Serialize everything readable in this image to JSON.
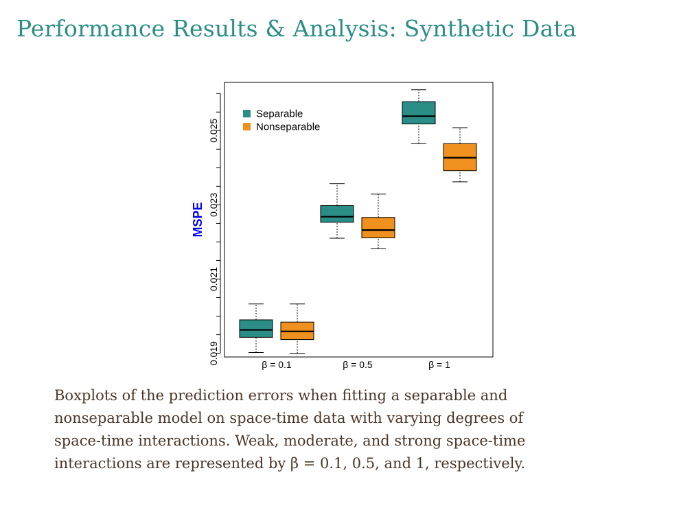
{
  "slide": {
    "title": "Performance Results & Analysis: Synthetic Data"
  },
  "caption": {
    "lines": [
      "Boxplots of the prediction errors when fitting a separable and",
      "nonseparable model on space-time data with varying degrees of",
      "space-time interactions. Weak, moderate, and strong space-time",
      "interactions are represented by β = 0.1, 0.5, and 1, respectively."
    ]
  },
  "colors": {
    "separable": "#2a8d86",
    "nonseparable": "#f0901e",
    "ylabel": "#0000ee",
    "title": "#2a8d86",
    "caption": "#4a3526"
  },
  "chart_data": {
    "type": "boxplot",
    "title": "",
    "xlabel": "",
    "ylabel": "MSPE",
    "ylim": [
      0.0189,
      0.0263
    ],
    "yticks": [
      "0.019",
      "0.021",
      "0.023",
      "0.025"
    ],
    "ytick_values": [
      0.019,
      0.021,
      0.023,
      0.025
    ],
    "categories": [
      "β = 0.1",
      "β = 0.5",
      "β = 1"
    ],
    "legend": {
      "position": "top-left",
      "entries": [
        "Separable",
        "Nonseparable"
      ]
    },
    "series": [
      {
        "name": "Separable",
        "color": "#2a8d86",
        "boxes": [
          {
            "min": 0.01902,
            "q1": 0.01943,
            "median": 0.01963,
            "q3": 0.0199,
            "max": 0.02033
          },
          {
            "min": 0.0221,
            "q1": 0.02253,
            "median": 0.02268,
            "q3": 0.02298,
            "max": 0.02357
          },
          {
            "min": 0.02465,
            "q1": 0.02518,
            "median": 0.02539,
            "q3": 0.02578,
            "max": 0.0261
          }
        ]
      },
      {
        "name": "Nonseparable",
        "color": "#f0901e",
        "boxes": [
          {
            "min": 0.019,
            "q1": 0.01937,
            "median": 0.01959,
            "q3": 0.01984,
            "max": 0.02033
          },
          {
            "min": 0.02182,
            "q1": 0.02211,
            "median": 0.02232,
            "q3": 0.02266,
            "max": 0.02329
          },
          {
            "min": 0.02362,
            "q1": 0.02392,
            "median": 0.02427,
            "q3": 0.02465,
            "max": 0.02508
          }
        ]
      }
    ]
  }
}
